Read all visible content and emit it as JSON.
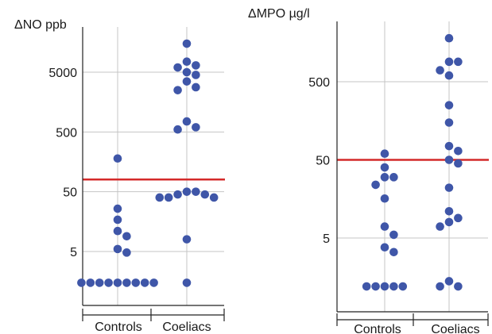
{
  "colors": {
    "marker": "#3f56a8",
    "reference_line": "#d42a2a",
    "grid": "#c4c4c4",
    "frame": "#222222"
  },
  "chart_data": [
    {
      "type": "scatter",
      "title": "ΔNO ppb",
      "xlabel": "",
      "ylabel": "ΔNO ppb",
      "y_scale": "log",
      "ylim": [
        1,
        16000
      ],
      "yticks": [
        5,
        50,
        500,
        5000
      ],
      "ytick_labels": [
        "5",
        "50",
        "500",
        "5000"
      ],
      "grid": true,
      "categories": [
        "Controls",
        "Coeliacs"
      ],
      "reference_line": {
        "y": 80,
        "color": "#d42a2a"
      },
      "series": [
        {
          "category": "Controls",
          "values": [
            1.5,
            1.5,
            1.5,
            1.5,
            1.5,
            1.5,
            1.5,
            1.5,
            1.5,
            4.8,
            5.5,
            9,
            11,
            17,
            26,
            180
          ]
        },
        {
          "category": "Coeliacs",
          "values": [
            1.5,
            8,
            40,
            40,
            40,
            45,
            45,
            50,
            50,
            550,
            600,
            750,
            2500,
            2800,
            3500,
            4500,
            5000,
            6000,
            6500,
            7500,
            15000
          ]
        }
      ]
    },
    {
      "type": "scatter",
      "title": "ΔMPO µg/l",
      "xlabel": "",
      "ylabel": "ΔMPO µg/l",
      "y_scale": "log",
      "ylim": [
        1,
        2000
      ],
      "yticks": [
        5,
        50,
        500
      ],
      "ytick_labels": [
        "5",
        "50",
        "500"
      ],
      "grid": true,
      "categories": [
        "Controls",
        "Coeliacs"
      ],
      "reference_line": {
        "y": 50,
        "color": "#d42a2a"
      },
      "series": [
        {
          "category": "Controls",
          "values": [
            1.2,
            1.2,
            1.2,
            1.2,
            1.2,
            3.3,
            3.8,
            5.5,
            7,
            16,
            24,
            30,
            30,
            40,
            60
          ]
        },
        {
          "category": "Coeliacs",
          "values": [
            1.2,
            1.2,
            1.4,
            7,
            8,
            9,
            11,
            22,
            45,
            50,
            65,
            75,
            150,
            250,
            600,
            700,
            900,
            900,
            1800
          ]
        }
      ]
    }
  ]
}
